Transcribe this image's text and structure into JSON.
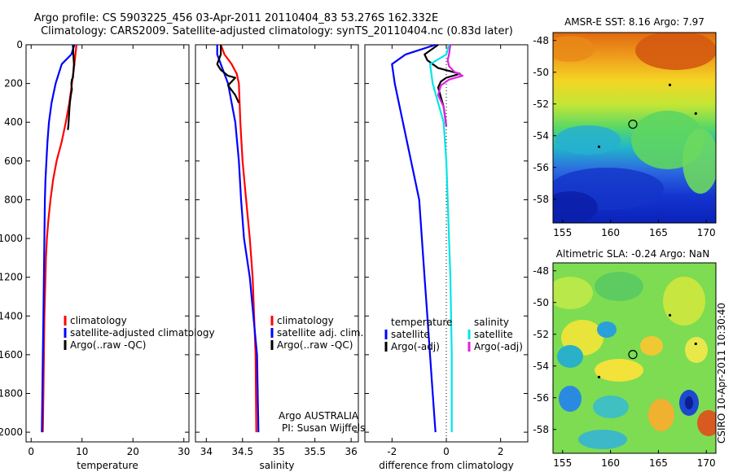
{
  "title": {
    "line1": "Argo profile: CS 5903225_456 03-Apr-2011 20110404_83 53.276S 162.332E",
    "line2": "Climatology: CARS2009. Satellite-adjusted climatology: synTS_20110404.nc (0.83d later)"
  },
  "credit": "CSIRO 10-Apr-2011 10:30:40",
  "owner": {
    "line1": "Argo AUSTRALIA",
    "line2": "PI: Susan Wijffels"
  },
  "colors": {
    "clim": "#ff0000",
    "sat": "#0000ff",
    "argo": "#000000",
    "sal_sat": "#00e5e5",
    "sal_argo": "#e020e0"
  },
  "chart_data": [
    {
      "type": "line",
      "name": "temperature",
      "xlabel": "temperature",
      "xlim": [
        -1,
        31
      ],
      "ylim": [
        0,
        2050
      ],
      "y_reversed": true,
      "xticks": [
        "0",
        "10",
        "20",
        "30"
      ],
      "yticks": [
        "0",
        "200",
        "400",
        "600",
        "800",
        "1000",
        "1200",
        "1400",
        "1600",
        "1800",
        "2000"
      ],
      "legend": [
        "climatology",
        "satellite-adjusted climatology",
        "Argo(..raw -QC)"
      ],
      "series": [
        {
          "name": "climatology",
          "color": "#ff0000",
          "x": [
            8.9,
            8.7,
            8.5,
            8.0,
            7.5,
            6.8,
            6.0,
            5.0,
            4.3,
            3.8,
            3.4,
            3.1,
            2.9,
            2.8,
            2.6,
            2.5,
            2.4,
            2.3
          ],
          "y": [
            0,
            50,
            100,
            200,
            300,
            400,
            500,
            600,
            700,
            800,
            900,
            1000,
            1100,
            1200,
            1400,
            1600,
            1800,
            2000
          ]
        },
        {
          "name": "satellite-adjusted climatology",
          "color": "#0000ff",
          "x": [
            8.5,
            7.9,
            6.0,
            4.8,
            4.0,
            3.5,
            3.2,
            3.0,
            2.8,
            2.7,
            2.6,
            2.5,
            2.4,
            2.3,
            2.2,
            2.1
          ],
          "y": [
            0,
            50,
            100,
            200,
            300,
            400,
            500,
            600,
            700,
            800,
            1000,
            1200,
            1400,
            1600,
            1800,
            2000
          ]
        },
        {
          "name": "Argo(..raw -QC)",
          "color": "#000000",
          "x": [
            8.2,
            8.3,
            8.4,
            8.3,
            8.2,
            8.0,
            7.9,
            8.0,
            7.8,
            7.6,
            7.5,
            7.4,
            7.3,
            7.2
          ],
          "y": [
            0,
            50,
            100,
            140,
            170,
            180,
            200,
            230,
            260,
            300,
            340,
            380,
            420,
            440
          ]
        }
      ]
    },
    {
      "type": "line",
      "name": "salinity",
      "xlabel": "salinity",
      "xlim": [
        33.85,
        36.1
      ],
      "ylim": [
        0,
        2050
      ],
      "y_reversed": true,
      "xticks": [
        "34",
        "34.5",
        "35",
        "35.5",
        "36"
      ],
      "legend": [
        "climatology",
        "satellite adj. clim.",
        "Argo(..raw -QC)"
      ],
      "series": [
        {
          "name": "climatology",
          "color": "#ff0000",
          "x": [
            34.2,
            34.25,
            34.35,
            34.42,
            34.45,
            34.46,
            34.47,
            34.5,
            34.55,
            34.6,
            34.64,
            34.66,
            34.68,
            34.69
          ],
          "y": [
            0,
            50,
            100,
            150,
            200,
            300,
            400,
            600,
            800,
            1000,
            1200,
            1400,
            1600,
            2000
          ]
        },
        {
          "name": "satellite adj. clim.",
          "color": "#0000ff",
          "x": [
            34.15,
            34.15,
            34.2,
            34.3,
            34.35,
            34.4,
            34.45,
            34.48,
            34.52,
            34.6,
            34.65,
            34.7,
            34.72
          ],
          "y": [
            0,
            50,
            100,
            200,
            300,
            400,
            600,
            800,
            1000,
            1200,
            1400,
            1600,
            2000
          ]
        },
        {
          "name": "Argo(..raw -QC)",
          "color": "#000000",
          "x": [
            34.2,
            34.2,
            34.15,
            34.2,
            34.3,
            34.4,
            34.35,
            34.3,
            34.4,
            34.45
          ],
          "y": [
            0,
            50,
            100,
            130,
            160,
            170,
            190,
            210,
            260,
            300
          ]
        }
      ]
    },
    {
      "type": "line",
      "name": "difference",
      "xlabel": "difference from climatology",
      "xlim": [
        -3,
        3
      ],
      "ylim": [
        0,
        2050
      ],
      "y_reversed": true,
      "xticks": [
        "-2",
        "0",
        "2"
      ],
      "zero_line": 0,
      "legend_headers": [
        "temperature",
        "salinity"
      ],
      "legend": [
        "satellite",
        "Argo(-adj)",
        "satellite",
        "Argo(-adj)"
      ],
      "series": [
        {
          "name": "temperature satellite",
          "color": "#0000ff",
          "x": [
            -0.4,
            -1.5,
            -2.0,
            -1.9,
            -1.75,
            -1.6,
            -1.45,
            -1.3,
            -1.15,
            -1.0,
            -0.9,
            -0.8,
            -0.7,
            -0.6,
            -0.5,
            -0.4
          ],
          "y": [
            0,
            50,
            100,
            200,
            300,
            400,
            500,
            600,
            700,
            800,
            1000,
            1200,
            1400,
            1600,
            1800,
            2000
          ]
        },
        {
          "name": "temperature Argo(-adj)",
          "color": "#000000",
          "x": [
            -0.3,
            -0.8,
            -0.7,
            -0.5,
            -0.3,
            0.5,
            0.0,
            -0.2,
            -0.3,
            -0.2,
            -0.1,
            0.0
          ],
          "y": [
            0,
            50,
            80,
            100,
            120,
            150,
            170,
            190,
            220,
            270,
            320,
            420
          ]
        },
        {
          "name": "salinity satellite",
          "color": "#00e5e5",
          "x": [
            0.1,
            0.0,
            -0.6,
            -0.5,
            -0.3,
            -0.1,
            0.0,
            0.05,
            0.1,
            0.15,
            0.2,
            0.2,
            0.2
          ],
          "y": [
            0,
            50,
            100,
            200,
            300,
            400,
            600,
            800,
            1000,
            1200,
            1600,
            1800,
            2000
          ]
        },
        {
          "name": "salinity Argo(-adj)",
          "color": "#e020e0",
          "x": [
            0.15,
            0.1,
            0.05,
            0.1,
            0.3,
            0.6,
            0.1,
            -0.2,
            -0.3,
            -0.1,
            0.0
          ],
          "y": [
            0,
            50,
            80,
            110,
            140,
            160,
            180,
            210,
            260,
            320,
            420
          ]
        }
      ]
    },
    {
      "type": "heatmap",
      "name": "amsr-sst",
      "title": "AMSR-E SST: 8.16 Argo: 7.97",
      "xlim": [
        154,
        171
      ],
      "ylim": [
        -59.5,
        -47.5
      ],
      "xticks": [
        "155",
        "160",
        "165",
        "170"
      ],
      "yticks": [
        "-48",
        "-50",
        "-52",
        "-54",
        "-56",
        "-58"
      ],
      "marker": {
        "lon": 162.332,
        "lat": -53.276
      }
    },
    {
      "type": "heatmap",
      "name": "altimetric-sla",
      "title": "Altimetric SLA: -0.24 Argo: NaN",
      "xlim": [
        154,
        171
      ],
      "ylim": [
        -59.5,
        -47.5
      ],
      "xticks": [
        "155",
        "160",
        "165",
        "170"
      ],
      "yticks": [
        "-48",
        "-50",
        "-52",
        "-54",
        "-56",
        "-58"
      ],
      "marker": {
        "lon": 162.332,
        "lat": -53.276
      }
    }
  ]
}
